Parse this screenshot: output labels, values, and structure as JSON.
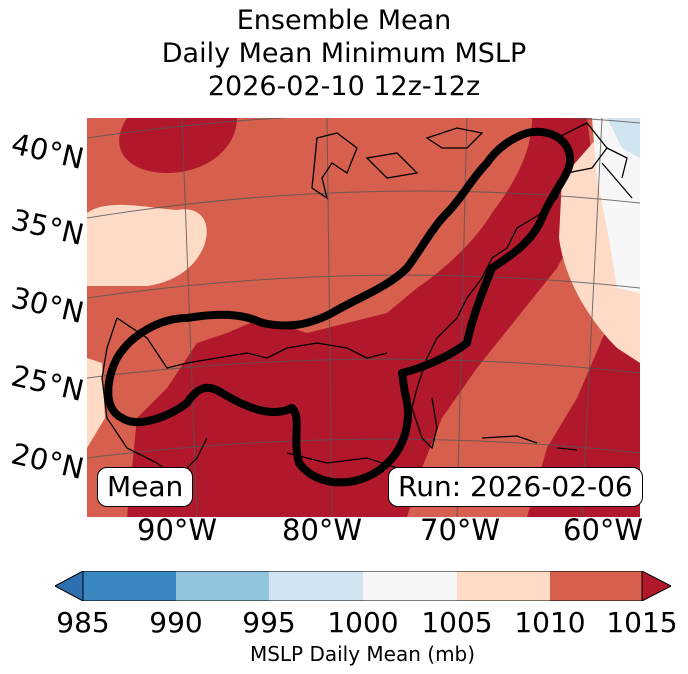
{
  "title": {
    "line1": "Ensemble Mean",
    "line2": "Daily Mean Minimum MSLP",
    "line3": "2026-02-10 12z-12z"
  },
  "map": {
    "lat_labels": [
      "40°N",
      "35°N",
      "30°N",
      "25°N",
      "20°N"
    ],
    "lon_labels": [
      "90°W",
      "80°W",
      "70°W",
      "60°W"
    ],
    "left_box": "Mean",
    "right_box": "Run: 2026-02-06",
    "shading_mb": [
      "1005-1010",
      "1010-1015",
      "≥1015"
    ]
  },
  "colorbar": {
    "ticks": [
      "985",
      "990",
      "995",
      "1000",
      "1005",
      "1010",
      "1015"
    ],
    "label": "MSLP Daily Mean (mb)",
    "colors": [
      "#2e6fb0",
      "#3a86c0",
      "#92c5de",
      "#d1e5f0",
      "#f7f7f7",
      "#fddbc7",
      "#d6604d",
      "#b2182b"
    ]
  }
}
